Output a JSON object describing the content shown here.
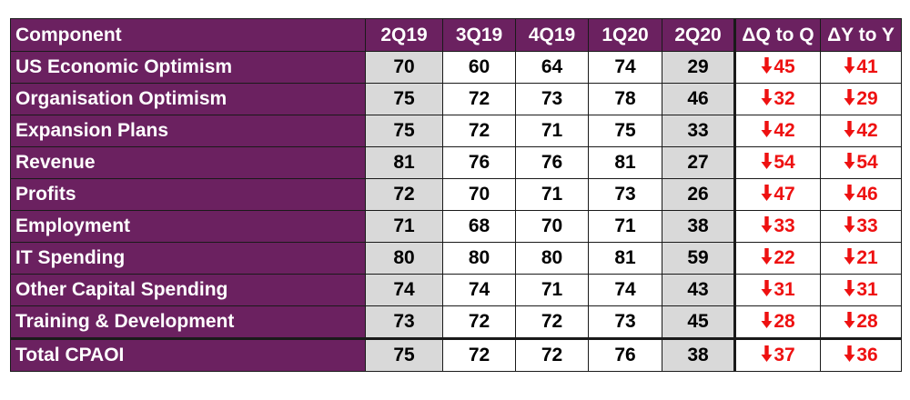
{
  "chart_data": {
    "type": "table",
    "headers": [
      "Component",
      "2Q19",
      "3Q19",
      "4Q19",
      "1Q20",
      "2Q20",
      "ΔQ to Q",
      "ΔY to Y"
    ],
    "rows": [
      {
        "component": "US Economic Optimism",
        "values": [
          "70",
          "60",
          "64",
          "74",
          "29"
        ],
        "dq": "45",
        "dy": "41"
      },
      {
        "component": "Organisation Optimism",
        "values": [
          "75",
          "72",
          "73",
          "78",
          "46"
        ],
        "dq": "32",
        "dy": "29"
      },
      {
        "component": "Expansion Plans",
        "values": [
          "75",
          "72",
          "71",
          "75",
          "33"
        ],
        "dq": "42",
        "dy": "42"
      },
      {
        "component": "Revenue",
        "values": [
          "81",
          "76",
          "76",
          "81",
          "27"
        ],
        "dq": "54",
        "dy": "54"
      },
      {
        "component": "Profits",
        "values": [
          "72",
          "70",
          "71",
          "73",
          "26"
        ],
        "dq": "47",
        "dy": "46"
      },
      {
        "component": "Employment",
        "values": [
          "71",
          "68",
          "70",
          "71",
          "38"
        ],
        "dq": "33",
        "dy": "33"
      },
      {
        "component": "IT Spending",
        "values": [
          "80",
          "80",
          "80",
          "81",
          "59"
        ],
        "dq": "22",
        "dy": "21"
      },
      {
        "component": "Other Capital Spending",
        "values": [
          "74",
          "74",
          "71",
          "74",
          "43"
        ],
        "dq": "31",
        "dy": "31"
      },
      {
        "component": "Training & Development",
        "values": [
          "73",
          "72",
          "72",
          "73",
          "45"
        ],
        "dq": "28",
        "dy": "28"
      },
      {
        "component": "Total CPAOI",
        "values": [
          "75",
          "72",
          "72",
          "76",
          "38"
        ],
        "dq": "37",
        "dy": "36"
      }
    ],
    "delta_direction": "down"
  },
  "colors": {
    "header_bg": "#6b2160",
    "header_text": "#ffffff",
    "shaded_cell": "#d9d9d9",
    "delta_text": "#ee1111",
    "border": "#1a1a1a"
  },
  "icons": {
    "delta": "arrow-down-icon"
  }
}
